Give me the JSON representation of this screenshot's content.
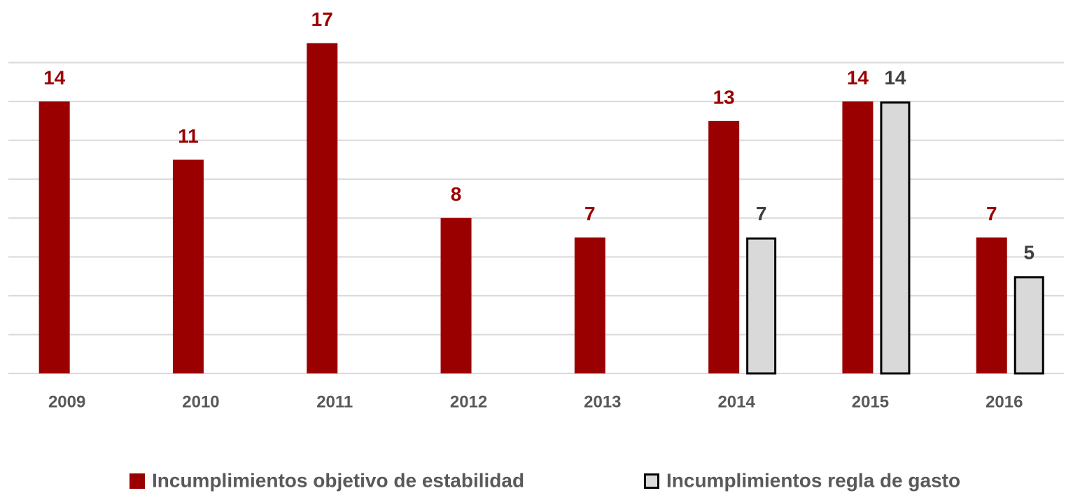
{
  "chart_data": {
    "type": "bar",
    "categories": [
      "2009",
      "2010",
      "2011",
      "2012",
      "2013",
      "2014",
      "2015",
      "2016"
    ],
    "series": [
      {
        "name": "Incumplimientos objetivo de estabilidad",
        "color": "#9b0000",
        "label_color": "#9b0000",
        "values": [
          14,
          11,
          17,
          8,
          7,
          13,
          14,
          7
        ]
      },
      {
        "name": "Incumplimientos regla de gasto",
        "color": "#d9d9d9",
        "stroke": "#000000",
        "label_color": "#404040",
        "values": [
          null,
          null,
          null,
          null,
          null,
          7,
          14,
          5
        ]
      }
    ],
    "ylim": [
      0,
      18
    ],
    "yticks": [
      0,
      2,
      4,
      6,
      8,
      10,
      12,
      14,
      16
    ],
    "grid": true,
    "legend": "bottom"
  }
}
